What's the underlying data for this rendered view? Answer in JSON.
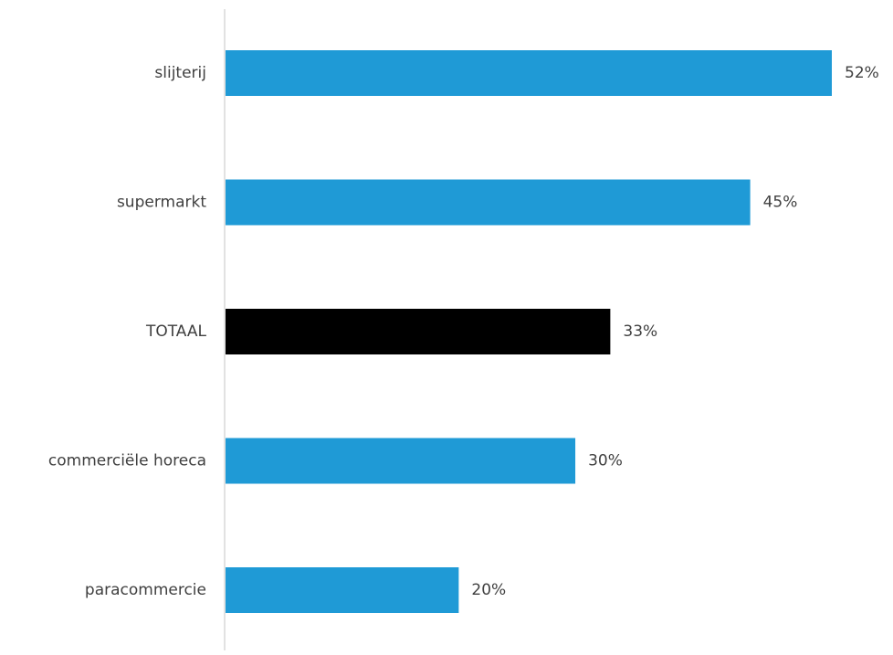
{
  "chart_data": {
    "type": "bar",
    "orientation": "horizontal",
    "categories": [
      "slijterij",
      "supermarkt",
      "TOTAAL",
      "commerciële horeca",
      "paracommercie"
    ],
    "values": [
      52,
      45,
      33,
      30,
      20
    ],
    "data_labels": [
      "52%",
      "45%",
      "33%",
      "30%",
      "20%"
    ],
    "bar_colors": [
      "#1f9ad6",
      "#1f9ad6",
      "#000000",
      "#1f9ad6",
      "#1f9ad6"
    ],
    "axis_color": "#d9d9d9",
    "xlim": [
      0,
      52
    ],
    "grid": false,
    "legend": "none"
  }
}
